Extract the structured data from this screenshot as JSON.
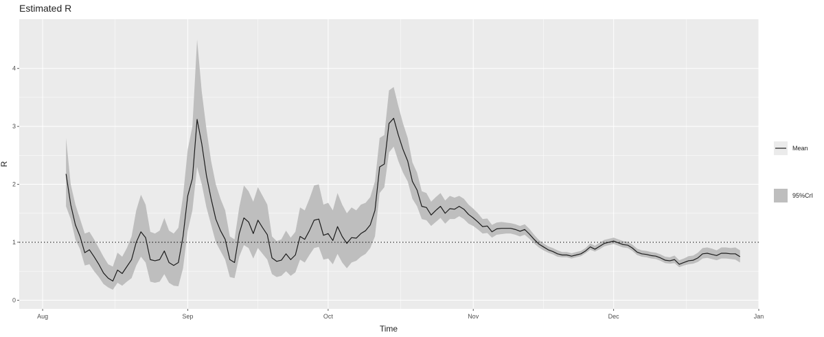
{
  "chart_data": {
    "type": "line",
    "title": "Estimated R",
    "xlabel": "Time",
    "ylabel": "R",
    "x_start": "2020-08-06",
    "x_step_days": 1,
    "xlim": [
      "2020-07-27",
      "2021-01-01"
    ],
    "ylim": [
      -0.15,
      4.85
    ],
    "x_ticks": [
      {
        "date": "2020-08-01",
        "label": "Aug"
      },
      {
        "date": "2020-09-01",
        "label": "Sep"
      },
      {
        "date": "2020-10-01",
        "label": "Oct"
      },
      {
        "date": "2020-11-01",
        "label": "Nov"
      },
      {
        "date": "2020-12-01",
        "label": "Dec"
      },
      {
        "date": "2021-01-01",
        "label": "Jan"
      }
    ],
    "y_ticks": [
      0,
      1,
      2,
      3,
      4
    ],
    "reference_line": {
      "y": 1,
      "style": "dotted"
    },
    "grid": true,
    "legend": {
      "position": "right",
      "entries": [
        "Mean",
        "95%CrI"
      ]
    },
    "colors": {
      "mean_line": "#1a1a1a",
      "band": "#bebebe",
      "panel": "#ebebeb",
      "grid": "#ffffff",
      "reference": "#000000"
    },
    "series": [
      {
        "name": "Mean",
        "values": [
          2.18,
          1.65,
          1.3,
          1.1,
          0.82,
          0.87,
          0.75,
          0.62,
          0.47,
          0.38,
          0.33,
          0.52,
          0.46,
          0.58,
          0.7,
          1.0,
          1.18,
          1.08,
          0.7,
          0.68,
          0.7,
          0.85,
          0.65,
          0.6,
          0.65,
          1.1,
          1.8,
          2.1,
          3.12,
          2.7,
          2.15,
          1.75,
          1.4,
          1.2,
          1.05,
          0.7,
          0.65,
          1.15,
          1.42,
          1.35,
          1.15,
          1.38,
          1.25,
          1.13,
          0.73,
          0.67,
          0.69,
          0.8,
          0.7,
          0.78,
          1.1,
          1.05,
          1.2,
          1.38,
          1.4,
          1.12,
          1.15,
          1.03,
          1.27,
          1.1,
          0.98,
          1.08,
          1.07,
          1.15,
          1.2,
          1.3,
          1.55,
          2.3,
          2.35,
          3.05,
          3.14,
          2.85,
          2.6,
          2.4,
          2.05,
          1.9,
          1.62,
          1.6,
          1.47,
          1.55,
          1.62,
          1.5,
          1.58,
          1.57,
          1.62,
          1.57,
          1.48,
          1.42,
          1.35,
          1.27,
          1.28,
          1.18,
          1.23,
          1.24,
          1.24,
          1.24,
          1.22,
          1.19,
          1.22,
          1.14,
          1.05,
          0.97,
          0.92,
          0.87,
          0.84,
          0.8,
          0.78,
          0.78,
          0.76,
          0.78,
          0.8,
          0.85,
          0.92,
          0.88,
          0.93,
          0.98,
          1.0,
          1.02,
          0.99,
          0.96,
          0.95,
          0.9,
          0.83,
          0.8,
          0.79,
          0.77,
          0.76,
          0.73,
          0.69,
          0.68,
          0.7,
          0.62,
          0.65,
          0.68,
          0.69,
          0.73,
          0.8,
          0.81,
          0.79,
          0.77,
          0.81,
          0.81,
          0.8,
          0.8,
          0.75
        ]
      },
      {
        "name": "95%CrI",
        "lower": [
          1.62,
          1.4,
          1.05,
          0.88,
          0.6,
          0.62,
          0.5,
          0.4,
          0.28,
          0.22,
          0.18,
          0.3,
          0.25,
          0.32,
          0.38,
          0.6,
          0.75,
          0.65,
          0.32,
          0.3,
          0.32,
          0.45,
          0.3,
          0.25,
          0.24,
          0.55,
          1.2,
          1.55,
          2.3,
          2.0,
          1.6,
          1.3,
          1.0,
          0.85,
          0.7,
          0.4,
          0.38,
          0.75,
          0.95,
          0.9,
          0.72,
          0.9,
          0.8,
          0.7,
          0.45,
          0.4,
          0.42,
          0.5,
          0.42,
          0.48,
          0.7,
          0.65,
          0.78,
          0.9,
          0.92,
          0.7,
          0.72,
          0.62,
          0.8,
          0.65,
          0.55,
          0.65,
          0.68,
          0.75,
          0.8,
          0.9,
          1.1,
          1.85,
          1.95,
          2.55,
          2.65,
          2.4,
          2.2,
          2.05,
          1.75,
          1.62,
          1.4,
          1.38,
          1.28,
          1.35,
          1.42,
          1.32,
          1.4,
          1.4,
          1.45,
          1.4,
          1.32,
          1.28,
          1.22,
          1.15,
          1.16,
          1.08,
          1.13,
          1.14,
          1.15,
          1.15,
          1.13,
          1.1,
          1.13,
          1.06,
          0.98,
          0.91,
          0.86,
          0.82,
          0.79,
          0.75,
          0.74,
          0.74,
          0.72,
          0.74,
          0.76,
          0.81,
          0.87,
          0.84,
          0.88,
          0.93,
          0.95,
          0.97,
          0.94,
          0.91,
          0.9,
          0.85,
          0.78,
          0.75,
          0.74,
          0.72,
          0.71,
          0.68,
          0.64,
          0.63,
          0.64,
          0.57,
          0.6,
          0.62,
          0.63,
          0.66,
          0.72,
          0.73,
          0.71,
          0.69,
          0.72,
          0.72,
          0.71,
          0.7,
          0.65
        ],
        "upper": [
          2.8,
          2.0,
          1.65,
          1.4,
          1.15,
          1.18,
          1.05,
          0.9,
          0.75,
          0.62,
          0.58,
          0.82,
          0.75,
          0.9,
          1.1,
          1.55,
          1.82,
          1.65,
          1.18,
          1.15,
          1.2,
          1.42,
          1.2,
          1.15,
          1.25,
          1.8,
          2.6,
          3.0,
          4.5,
          3.6,
          2.95,
          2.4,
          2.0,
          1.75,
          1.55,
          1.1,
          1.05,
          1.6,
          1.98,
          1.88,
          1.7,
          1.95,
          1.8,
          1.65,
          1.1,
          1.02,
          1.05,
          1.2,
          1.08,
          1.18,
          1.6,
          1.55,
          1.75,
          1.98,
          2.0,
          1.65,
          1.68,
          1.55,
          1.85,
          1.65,
          1.5,
          1.6,
          1.55,
          1.65,
          1.68,
          1.78,
          2.05,
          2.8,
          2.85,
          3.62,
          3.68,
          3.35,
          3.05,
          2.8,
          2.38,
          2.2,
          1.88,
          1.85,
          1.7,
          1.78,
          1.85,
          1.72,
          1.8,
          1.77,
          1.8,
          1.75,
          1.65,
          1.58,
          1.5,
          1.4,
          1.41,
          1.3,
          1.34,
          1.35,
          1.34,
          1.33,
          1.31,
          1.28,
          1.31,
          1.23,
          1.13,
          1.04,
          0.98,
          0.93,
          0.9,
          0.86,
          0.83,
          0.83,
          0.81,
          0.83,
          0.85,
          0.9,
          0.98,
          0.94,
          0.99,
          1.04,
          1.06,
          1.08,
          1.05,
          1.02,
          1.01,
          0.96,
          0.89,
          0.86,
          0.85,
          0.83,
          0.82,
          0.79,
          0.75,
          0.74,
          0.77,
          0.69,
          0.72,
          0.76,
          0.77,
          0.82,
          0.9,
          0.91,
          0.89,
          0.86,
          0.91,
          0.91,
          0.9,
          0.91,
          0.86
        ]
      }
    ]
  }
}
